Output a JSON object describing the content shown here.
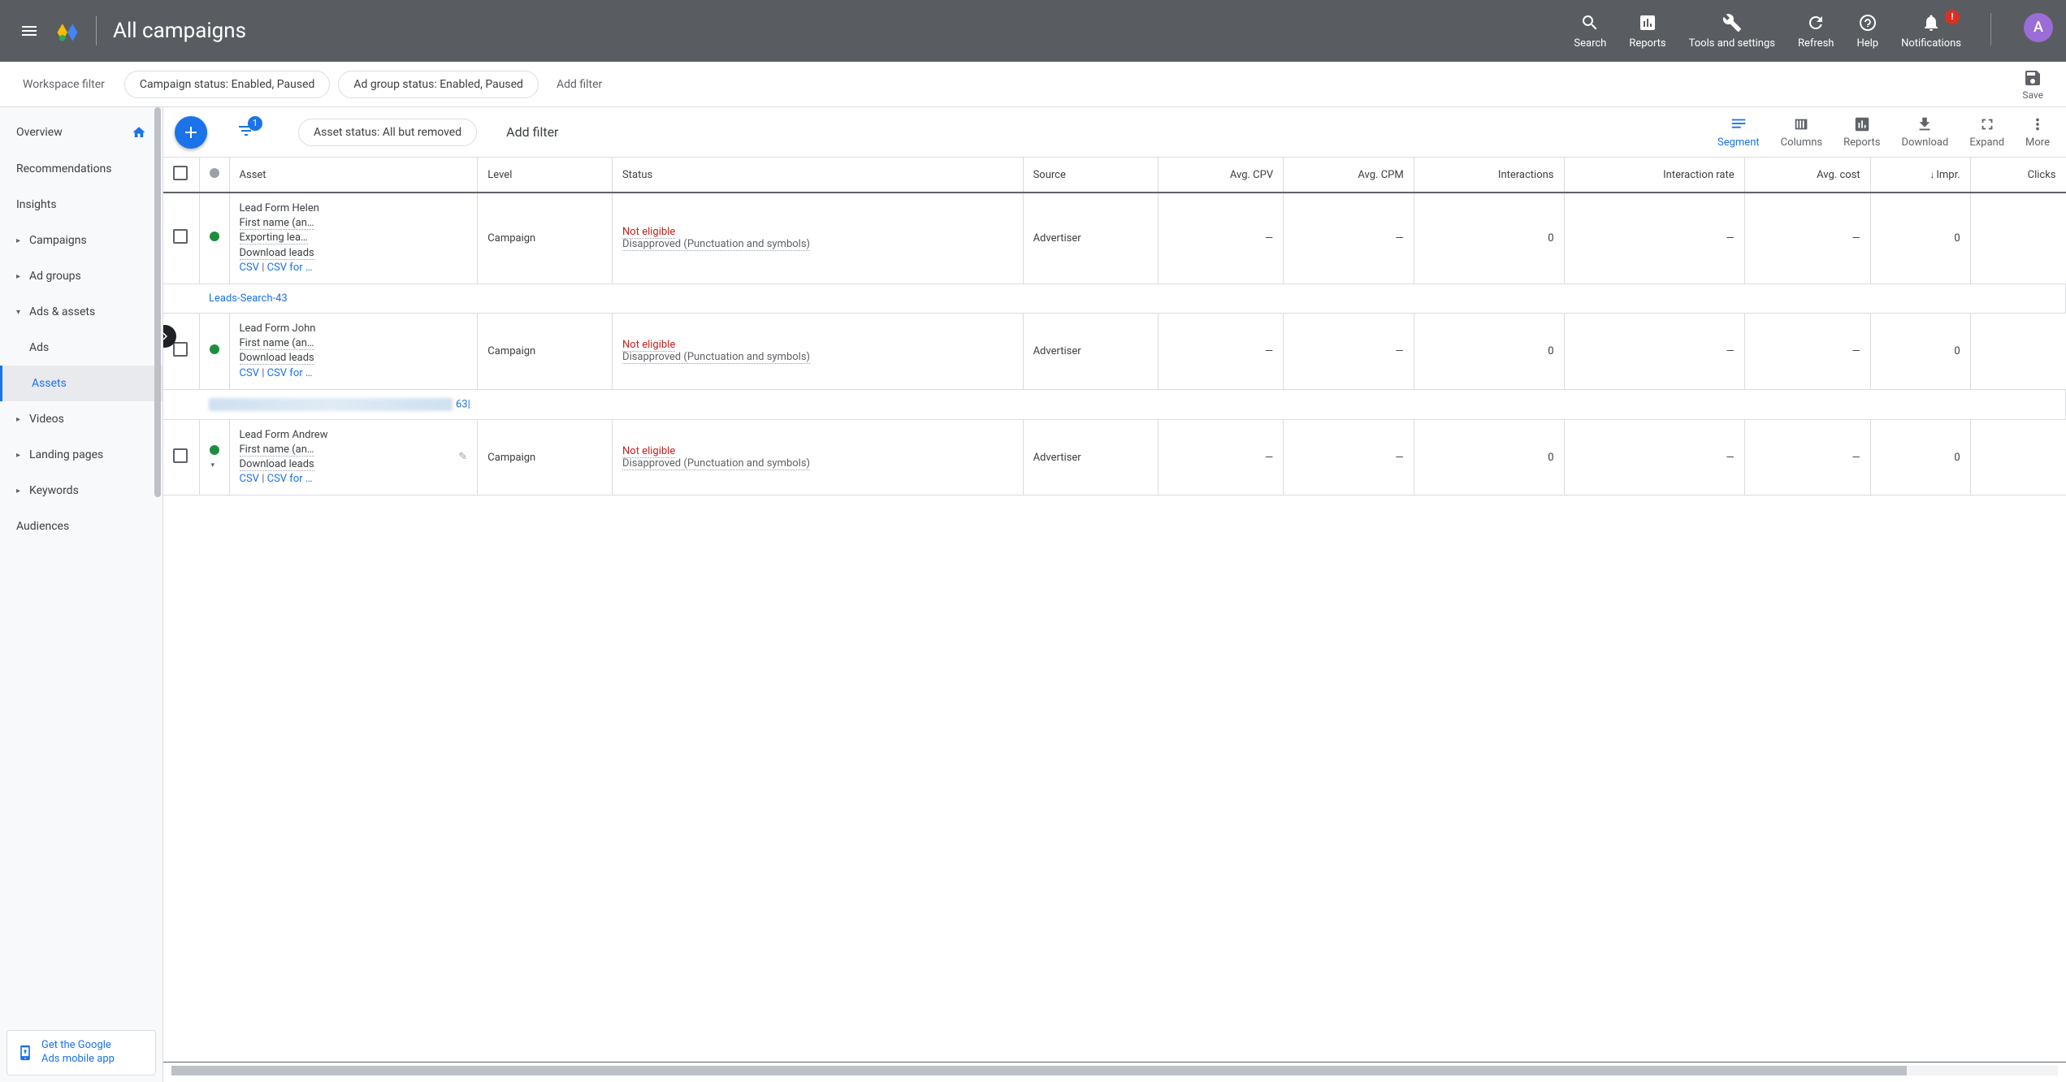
{
  "header": {
    "title": "All campaigns",
    "tools": {
      "search": "Search",
      "reports": "Reports",
      "tools_settings": "Tools and settings",
      "refresh": "Refresh",
      "help": "Help",
      "notifications": "Notifications",
      "notif_badge": "!"
    },
    "avatar_letter": "A"
  },
  "filterbar": {
    "label": "Workspace filter",
    "chip1": "Campaign status: Enabled, Paused",
    "chip2": "Ad group status: Enabled, Paused",
    "add_filter": "Add filter",
    "save": "Save"
  },
  "sidebar": {
    "overview": "Overview",
    "recommendations": "Recommendations",
    "insights": "Insights",
    "campaigns": "Campaigns",
    "adgroups": "Ad groups",
    "ads_assets": "Ads & assets",
    "ads": "Ads",
    "assets": "Assets",
    "videos": "Videos",
    "landing": "Landing pages",
    "keywords": "Keywords",
    "audiences": "Audiences",
    "promo_line1": "Get the Google",
    "promo_line2": "Ads mobile app"
  },
  "toolbar": {
    "chip": "Asset status: All but removed",
    "add_filter": "Add filter",
    "filter_count": "1",
    "segment": "Segment",
    "columns": "Columns",
    "reports": "Reports",
    "download": "Download",
    "expand": "Expand",
    "more": "More"
  },
  "columns": {
    "asset": "Asset",
    "level": "Level",
    "status": "Status",
    "source": "Source",
    "avg_cpv": "Avg. CPV",
    "avg_cpm": "Avg. CPM",
    "interactions": "Interactions",
    "interaction_rate": "Interaction rate",
    "avg_cost": "Avg. cost",
    "impr": "Impr.",
    "clicks": "Clicks"
  },
  "group_rows": {
    "g1": "Leads-Search-43",
    "g2_suffix": "63|"
  },
  "rows": [
    {
      "asset_lines": [
        "Lead Form Helen",
        "First name (an…",
        "Exporting lea…"
      ],
      "download_label": "Download leads",
      "csv": "CSV",
      "csv_for": "CSV for …",
      "level": "Campaign",
      "status_title": "Not eligible",
      "status_detail": "Disapproved (Punctuation and symbols)",
      "source": "Advertiser",
      "avg_cpv": "—",
      "avg_cpm": "—",
      "interactions": "0",
      "interaction_rate": "—",
      "avg_cost": "—",
      "impr": "0"
    },
    {
      "asset_lines": [
        "Lead Form John",
        "First name (an…"
      ],
      "download_label": "Download leads",
      "csv": "CSV",
      "csv_for": "CSV for …",
      "level": "Campaign",
      "status_title": "Not eligible",
      "status_detail": "Disapproved (Punctuation and symbols)",
      "source": "Advertiser",
      "avg_cpv": "—",
      "avg_cpm": "—",
      "interactions": "0",
      "interaction_rate": "—",
      "avg_cost": "—",
      "impr": "0"
    },
    {
      "asset_lines": [
        "Lead Form Andrew",
        "First name (an…"
      ],
      "download_label": "Download leads",
      "csv": "CSV",
      "csv_for": "CSV for …",
      "level": "Campaign",
      "status_title": "Not eligible",
      "status_detail": "Disapproved (Punctuation and symbols)",
      "source": "Advertiser",
      "avg_cpv": "—",
      "avg_cpm": "—",
      "interactions": "0",
      "interaction_rate": "—",
      "avg_cost": "—",
      "impr": "0"
    }
  ],
  "colors": {
    "header_bg": "#595d61",
    "accent": "#1a73e8",
    "green": "#1e8e3e",
    "error": "#c5221f",
    "gray": "#9aa0a6",
    "avatar_bg": "#9b6dd7",
    "badge_red": "#d93025"
  }
}
